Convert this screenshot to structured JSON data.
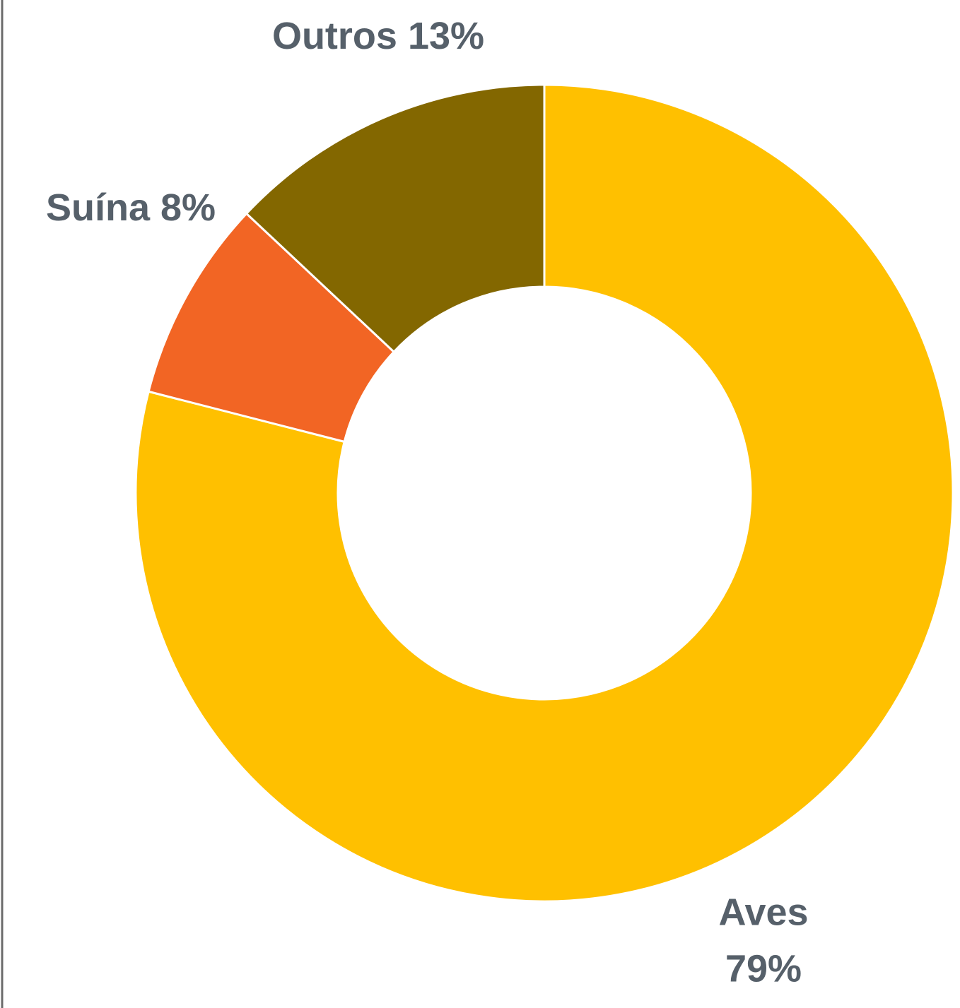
{
  "chart_data": {
    "type": "donut",
    "categories": [
      "Aves",
      "Suína",
      "Outros"
    ],
    "values": [
      79,
      8,
      13
    ],
    "value_labels": [
      "79%",
      "8%",
      "13%"
    ],
    "colors": [
      "#FFC000",
      "#F26524",
      "#836700"
    ]
  }
}
